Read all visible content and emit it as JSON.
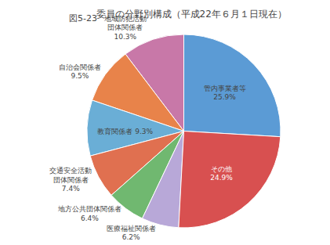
{
  "chart_data": {
    "type": "pie",
    "title": "委員の分野別構成（平成22年６月１日現在）",
    "annotations": [
      "図5-23"
    ],
    "categories": [
      "管内事業者等\n25.9%",
      "地域防犯活動\n団体関係者\n10.3%",
      "自治会関係者\n9.5%",
      "教育関係者 9.3%",
      "交通安全活動\n団体関係者\n7.4%",
      "地方公共団体関係者\n6.4%",
      "医療福祉関係者\n6.2%",
      "その他\n24.9%"
    ],
    "values": [
      25.9,
      10.3,
      9.5,
      9.3,
      7.4,
      6.4,
      6.2,
      24.9
    ],
    "colors": [
      "#5b9bd5",
      "#c878a8",
      "#e8834a",
      "#6aaed6",
      "#e07050",
      "#70b870",
      "#b8a8d8",
      "#d85050"
    ],
    "data_labels": true
  }
}
